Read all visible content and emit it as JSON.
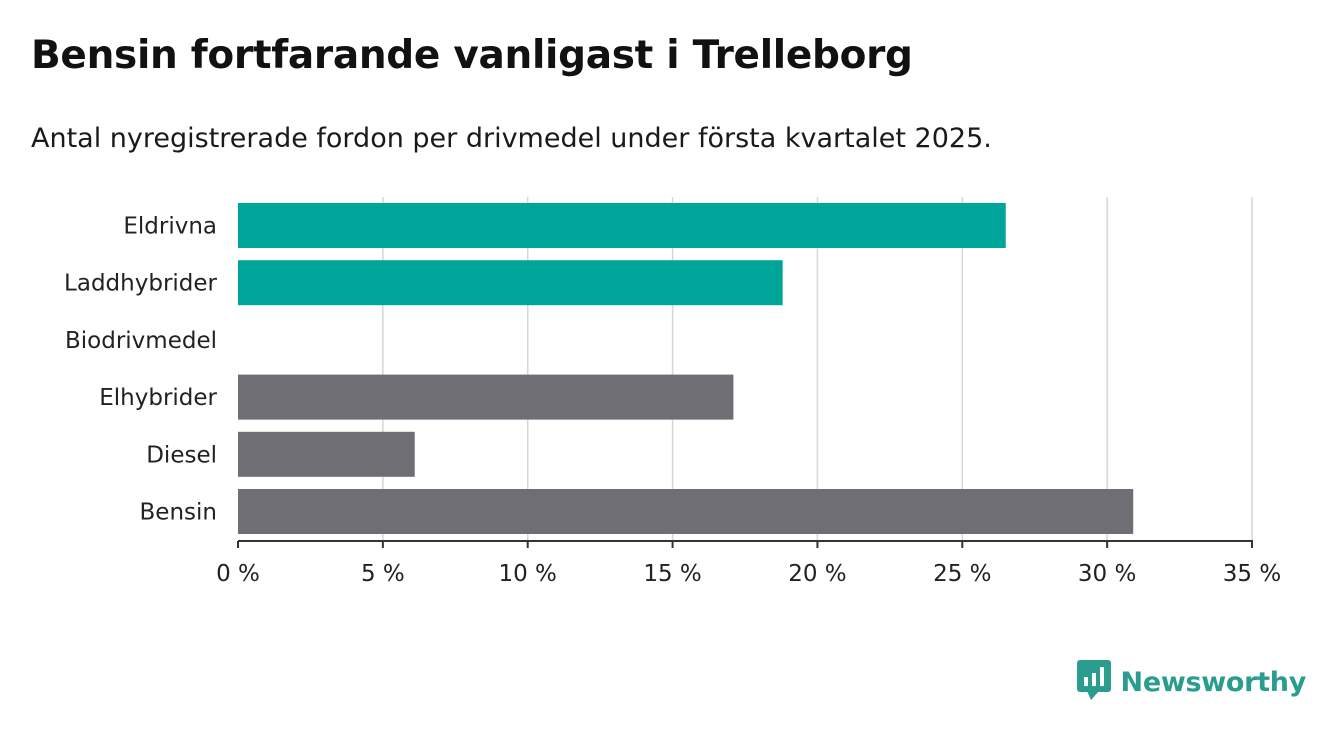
{
  "title": "Bensin fortfarande vanligast i Trelleborg",
  "subtitle": "Antal nyregistrerade fordon per drivmedel under första kvartalet 2025.",
  "brand": {
    "name": "Newsworthy",
    "icon": "bar-chart-speech-bubble-icon",
    "color": "#2a9d8f"
  },
  "chart_data": {
    "type": "bar",
    "orientation": "horizontal",
    "categories": [
      "Eldrivna",
      "Laddhybrider",
      "Biodrivmedel",
      "Elhybrider",
      "Diesel",
      "Bensin"
    ],
    "values": [
      26.5,
      18.8,
      0,
      17.1,
      6.1,
      30.9
    ],
    "colors": [
      "#00a59a",
      "#00a59a",
      "#00a59a",
      "#6e6e74",
      "#6e6e74",
      "#6e6e74"
    ],
    "xlim": [
      0,
      35
    ],
    "xticks": [
      0,
      5,
      10,
      15,
      20,
      25,
      30,
      35
    ],
    "xtick_labels": [
      "0 %",
      "5 %",
      "10 %",
      "15 %",
      "20 %",
      "25 %",
      "30 %",
      "35 %"
    ],
    "grid": "vertical",
    "legend": "none"
  }
}
